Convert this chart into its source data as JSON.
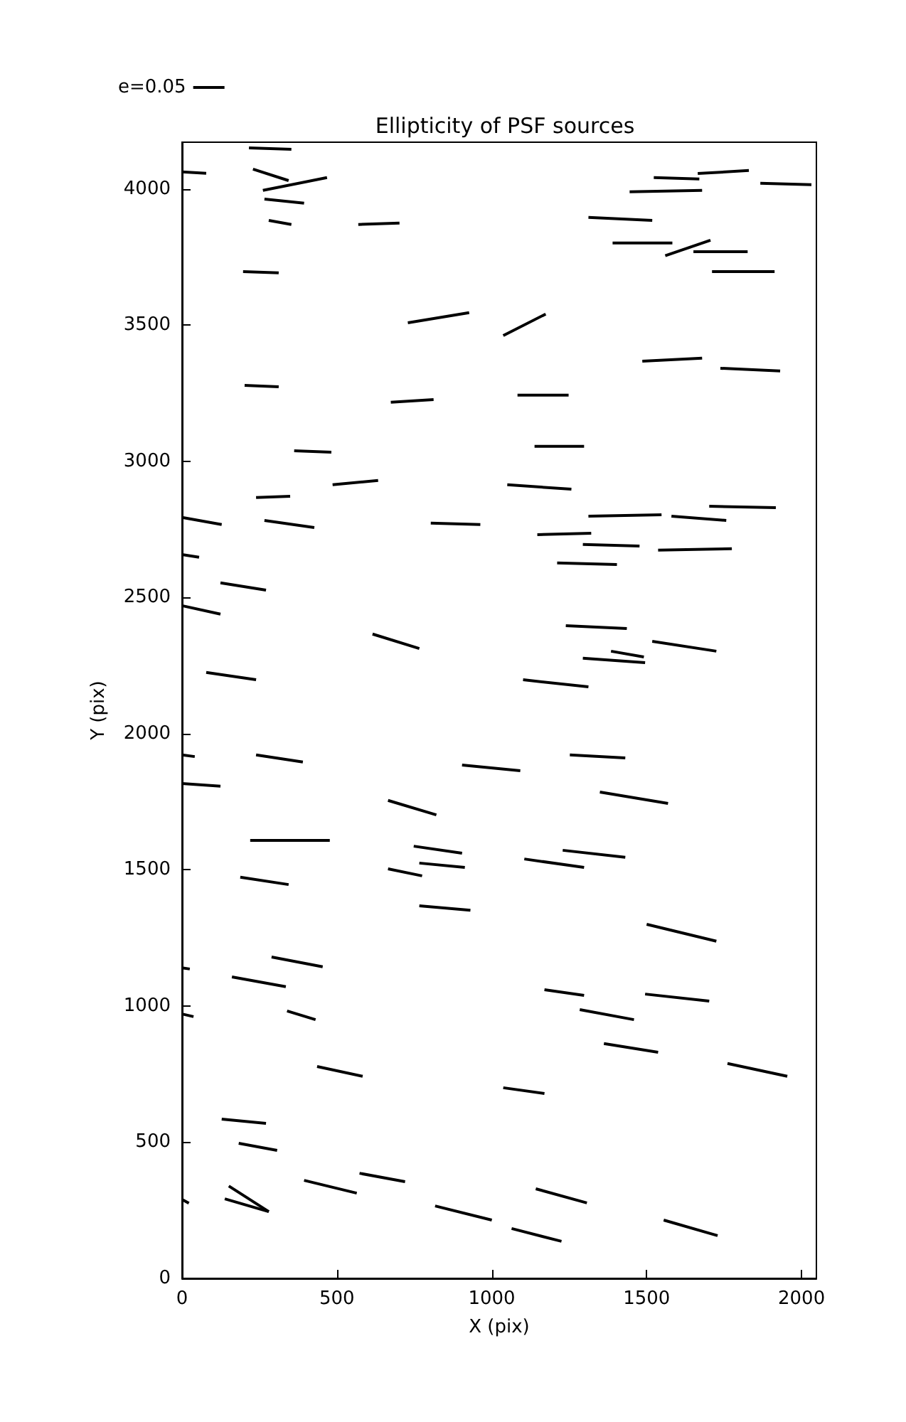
{
  "chart_data": {
    "type": "line",
    "title": "Ellipticity of PSF sources",
    "xlabel": "X (pix)",
    "ylabel": "Y (pix)",
    "xlim": [
      0,
      2048
    ],
    "ylim": [
      0,
      4172
    ],
    "xticks": [
      0,
      500,
      1000,
      1500,
      2000
    ],
    "yticks": [
      0,
      500,
      1000,
      1500,
      2000,
      2500,
      3000,
      3500,
      4000
    ],
    "grid": false,
    "legend": "top left",
    "marker": "none",
    "line_style": "solid",
    "series": [
      {
        "name": "e=0.05",
        "color": "#000000",
        "x": [
          0,
          78
        ],
        "values": [
          4063,
          4058
        ]
      },
      {
        "color": "#000000",
        "x": [
          216,
          353
        ],
        "values": [
          4151,
          4146
        ]
      },
      {
        "color": "#000000",
        "x": [
          229,
          344
        ],
        "values": [
          4073,
          4031
        ]
      },
      {
        "color": "#000000",
        "x": [
          261,
          468
        ],
        "values": [
          3995,
          4042
        ]
      },
      {
        "color": "#000000",
        "x": [
          266,
          394
        ],
        "values": [
          3963,
          3948
        ]
      },
      {
        "color": "#000000",
        "x": [
          280,
          353
        ],
        "values": [
          3885,
          3870
        ]
      },
      {
        "color": "#000000",
        "x": [
          197,
          312
        ],
        "values": [
          3697,
          3692
        ]
      },
      {
        "color": "#000000",
        "x": [
          569,
          702
        ],
        "values": [
          3870,
          3875
        ]
      },
      {
        "color": "#000000",
        "x": [
          729,
          927
        ],
        "values": [
          3509,
          3546
        ]
      },
      {
        "color": "#000000",
        "x": [
          1037,
          1174
        ],
        "values": [
          3462,
          3541
        ]
      },
      {
        "color": "#000000",
        "x": [
          1312,
          1518
        ],
        "values": [
          3896,
          3885
        ]
      },
      {
        "color": "#000000",
        "x": [
          1445,
          1679
        ],
        "values": [
          3990,
          3995
        ]
      },
      {
        "color": "#000000",
        "x": [
          1523,
          1670
        ],
        "values": [
          4042,
          4037
        ]
      },
      {
        "color": "#000000",
        "x": [
          1665,
          1830
        ],
        "values": [
          4057,
          4068
        ]
      },
      {
        "color": "#000000",
        "x": [
          1867,
          2032
        ],
        "values": [
          4021,
          4016
        ]
      },
      {
        "color": "#000000",
        "x": [
          1390,
          1583
        ],
        "values": [
          3802,
          3802
        ]
      },
      {
        "color": "#000000",
        "x": [
          1560,
          1706
        ],
        "values": [
          3755,
          3812
        ]
      },
      {
        "color": "#000000",
        "x": [
          1651,
          1826
        ],
        "values": [
          3770,
          3770
        ]
      },
      {
        "color": "#000000",
        "x": [
          1711,
          1913
        ],
        "values": [
          3697,
          3697
        ]
      },
      {
        "color": "#000000",
        "x": [
          1486,
          1679
        ],
        "values": [
          3368,
          3379
        ]
      },
      {
        "color": "#000000",
        "x": [
          1738,
          1931
        ],
        "values": [
          3342,
          3332
        ]
      },
      {
        "color": "#000000",
        "x": [
          202,
          312
        ],
        "values": [
          3279,
          3274
        ]
      },
      {
        "color": "#000000",
        "x": [
          674,
          812
        ],
        "values": [
          3217,
          3227
        ]
      },
      {
        "color": "#000000",
        "x": [
          1083,
          1248
        ],
        "values": [
          3243,
          3243
        ]
      },
      {
        "color": "#000000",
        "x": [
          1138,
          1298
        ],
        "values": [
          3055,
          3055
        ]
      },
      {
        "color": "#000000",
        "x": [
          362,
          482
        ],
        "values": [
          3039,
          3034
        ]
      },
      {
        "color": "#000000",
        "x": [
          486,
          633
        ],
        "values": [
          2914,
          2930
        ]
      },
      {
        "color": "#000000",
        "x": [
          239,
          349
        ],
        "values": [
          2867,
          2872
        ]
      },
      {
        "color": "#000000",
        "x": [
          1050,
          1257
        ],
        "values": [
          2914,
          2898
        ]
      },
      {
        "color": "#000000",
        "x": [
          0,
          128
        ],
        "values": [
          2794,
          2768
        ]
      },
      {
        "color": "#000000",
        "x": [
          266,
          427
        ],
        "values": [
          2783,
          2757
        ]
      },
      {
        "color": "#000000",
        "x": [
          803,
          963
        ],
        "values": [
          2773,
          2768
        ]
      },
      {
        "color": "#000000",
        "x": [
          1147,
          1321
        ],
        "values": [
          2731,
          2736
        ]
      },
      {
        "color": "#000000",
        "x": [
          1312,
          1548
        ],
        "values": [
          2799,
          2804
        ]
      },
      {
        "color": "#000000",
        "x": [
          1580,
          1757
        ],
        "values": [
          2799,
          2783
        ]
      },
      {
        "color": "#000000",
        "x": [
          1702,
          1917
        ],
        "values": [
          2835,
          2830
        ]
      },
      {
        "color": "#000000",
        "x": [
          1294,
          1477
        ],
        "values": [
          2695,
          2689
        ]
      },
      {
        "color": "#000000",
        "x": [
          1537,
          1775
        ],
        "values": [
          2674,
          2679
        ]
      },
      {
        "color": "#000000",
        "x": [
          0,
          55
        ],
        "values": [
          2658,
          2648
        ]
      },
      {
        "color": "#000000",
        "x": [
          1211,
          1404
        ],
        "values": [
          2627,
          2621
        ]
      },
      {
        "color": "#000000",
        "x": [
          124,
          271
        ],
        "values": [
          2554,
          2527
        ]
      },
      {
        "color": "#000000",
        "x": [
          0,
          124
        ],
        "values": [
          2470,
          2439
        ]
      },
      {
        "color": "#000000",
        "x": [
          1239,
          1436
        ],
        "values": [
          2397,
          2386
        ]
      },
      {
        "color": "#000000",
        "x": [
          1385,
          1491
        ],
        "values": [
          2303,
          2282
        ]
      },
      {
        "color": "#000000",
        "x": [
          1294,
          1495
        ],
        "values": [
          2277,
          2261
        ]
      },
      {
        "color": "#000000",
        "x": [
          1518,
          1725
        ],
        "values": [
          2339,
          2303
        ]
      },
      {
        "color": "#000000",
        "x": [
          78,
          239
        ],
        "values": [
          2225,
          2198
        ]
      },
      {
        "color": "#000000",
        "x": [
          615,
          766
        ],
        "values": [
          2366,
          2313
        ]
      },
      {
        "color": "#000000",
        "x": [
          1101,
          1312
        ],
        "values": [
          2198,
          2172
        ]
      },
      {
        "color": "#000000",
        "x": [
          0,
          41
        ],
        "values": [
          1922,
          1916
        ]
      },
      {
        "color": "#000000",
        "x": [
          239,
          390
        ],
        "values": [
          1922,
          1896
        ]
      },
      {
        "color": "#000000",
        "x": [
          904,
          1092
        ],
        "values": [
          1885,
          1864
        ]
      },
      {
        "color": "#000000",
        "x": [
          1252,
          1431
        ],
        "values": [
          1922,
          1911
        ]
      },
      {
        "color": "#000000",
        "x": [
          0,
          124
        ],
        "values": [
          1817,
          1807
        ]
      },
      {
        "color": "#000000",
        "x": [
          665,
          821
        ],
        "values": [
          1755,
          1702
        ]
      },
      {
        "color": "#000000",
        "x": [
          1349,
          1569
        ],
        "values": [
          1786,
          1744
        ]
      },
      {
        "color": "#000000",
        "x": [
          220,
          477
        ],
        "values": [
          1608,
          1608
        ]
      },
      {
        "color": "#000000",
        "x": [
          748,
          904
        ],
        "values": [
          1587,
          1561
        ]
      },
      {
        "color": "#000000",
        "x": [
          766,
          913
        ],
        "values": [
          1525,
          1509
        ]
      },
      {
        "color": "#000000",
        "x": [
          1105,
          1298
        ],
        "values": [
          1540,
          1509
        ]
      },
      {
        "color": "#000000",
        "x": [
          1229,
          1431
        ],
        "values": [
          1572,
          1546
        ]
      },
      {
        "color": "#000000",
        "x": [
          665,
          775
        ],
        "values": [
          1504,
          1478
        ]
      },
      {
        "color": "#000000",
        "x": [
          188,
          344
        ],
        "values": [
          1473,
          1446
        ]
      },
      {
        "color": "#000000",
        "x": [
          766,
          931
        ],
        "values": [
          1368,
          1352
        ]
      },
      {
        "color": "#000000",
        "x": [
          1500,
          1725
        ],
        "values": [
          1300,
          1238
        ]
      },
      {
        "color": "#000000",
        "x": [
          0,
          25
        ],
        "values": [
          1140,
          1136
        ]
      },
      {
        "color": "#000000",
        "x": [
          289,
          454
        ],
        "values": [
          1180,
          1144
        ]
      },
      {
        "color": "#000000",
        "x": [
          161,
          335
        ],
        "values": [
          1107,
          1071
        ]
      },
      {
        "color": "#000000",
        "x": [
          339,
          431
        ],
        "values": [
          982,
          950
        ]
      },
      {
        "color": "#000000",
        "x": [
          0,
          37
        ],
        "values": [
          971,
          961
        ]
      },
      {
        "color": "#000000",
        "x": [
          1170,
          1298
        ],
        "values": [
          1060,
          1039
        ]
      },
      {
        "color": "#000000",
        "x": [
          1284,
          1459
        ],
        "values": [
          987,
          950
        ]
      },
      {
        "color": "#000000",
        "x": [
          1495,
          1702
        ],
        "values": [
          1044,
          1018
        ]
      },
      {
        "color": "#000000",
        "x": [
          1362,
          1537
        ],
        "values": [
          862,
          830
        ]
      },
      {
        "color": "#000000",
        "x": [
          436,
          583
        ],
        "values": [
          778,
          742
        ]
      },
      {
        "color": "#000000",
        "x": [
          1037,
          1170
        ],
        "values": [
          700,
          679
        ]
      },
      {
        "color": "#000000",
        "x": [
          1761,
          1954
        ],
        "values": [
          789,
          742
        ]
      },
      {
        "color": "#000000",
        "x": [
          128,
          271
        ],
        "values": [
          585,
          569
        ]
      },
      {
        "color": "#000000",
        "x": [
          183,
          307
        ],
        "values": [
          496,
          470
        ]
      },
      {
        "color": "#000000",
        "x": [
          394,
          564
        ],
        "values": [
          360,
          313
        ]
      },
      {
        "color": "#000000",
        "x": [
          573,
          720
        ],
        "values": [
          386,
          355
        ]
      },
      {
        "color": "#000000",
        "x": [
          151,
          280
        ],
        "values": [
          339,
          245
        ]
      },
      {
        "color": "#000000",
        "x": [
          138,
          280
        ],
        "values": [
          292,
          245
        ]
      },
      {
        "color": "#000000",
        "x": [
          817,
          1000
        ],
        "values": [
          266,
          214
        ]
      },
      {
        "color": "#000000",
        "x": [
          1064,
          1225
        ],
        "values": [
          183,
          136
        ]
      },
      {
        "color": "#000000",
        "x": [
          1142,
          1307
        ],
        "values": [
          329,
          277
        ]
      },
      {
        "color": "#000000",
        "x": [
          1555,
          1729
        ],
        "values": [
          214,
          157
        ]
      },
      {
        "color": "#000000",
        "x": [
          0,
          22
        ],
        "values": [
          290,
          276
        ]
      }
    ]
  }
}
